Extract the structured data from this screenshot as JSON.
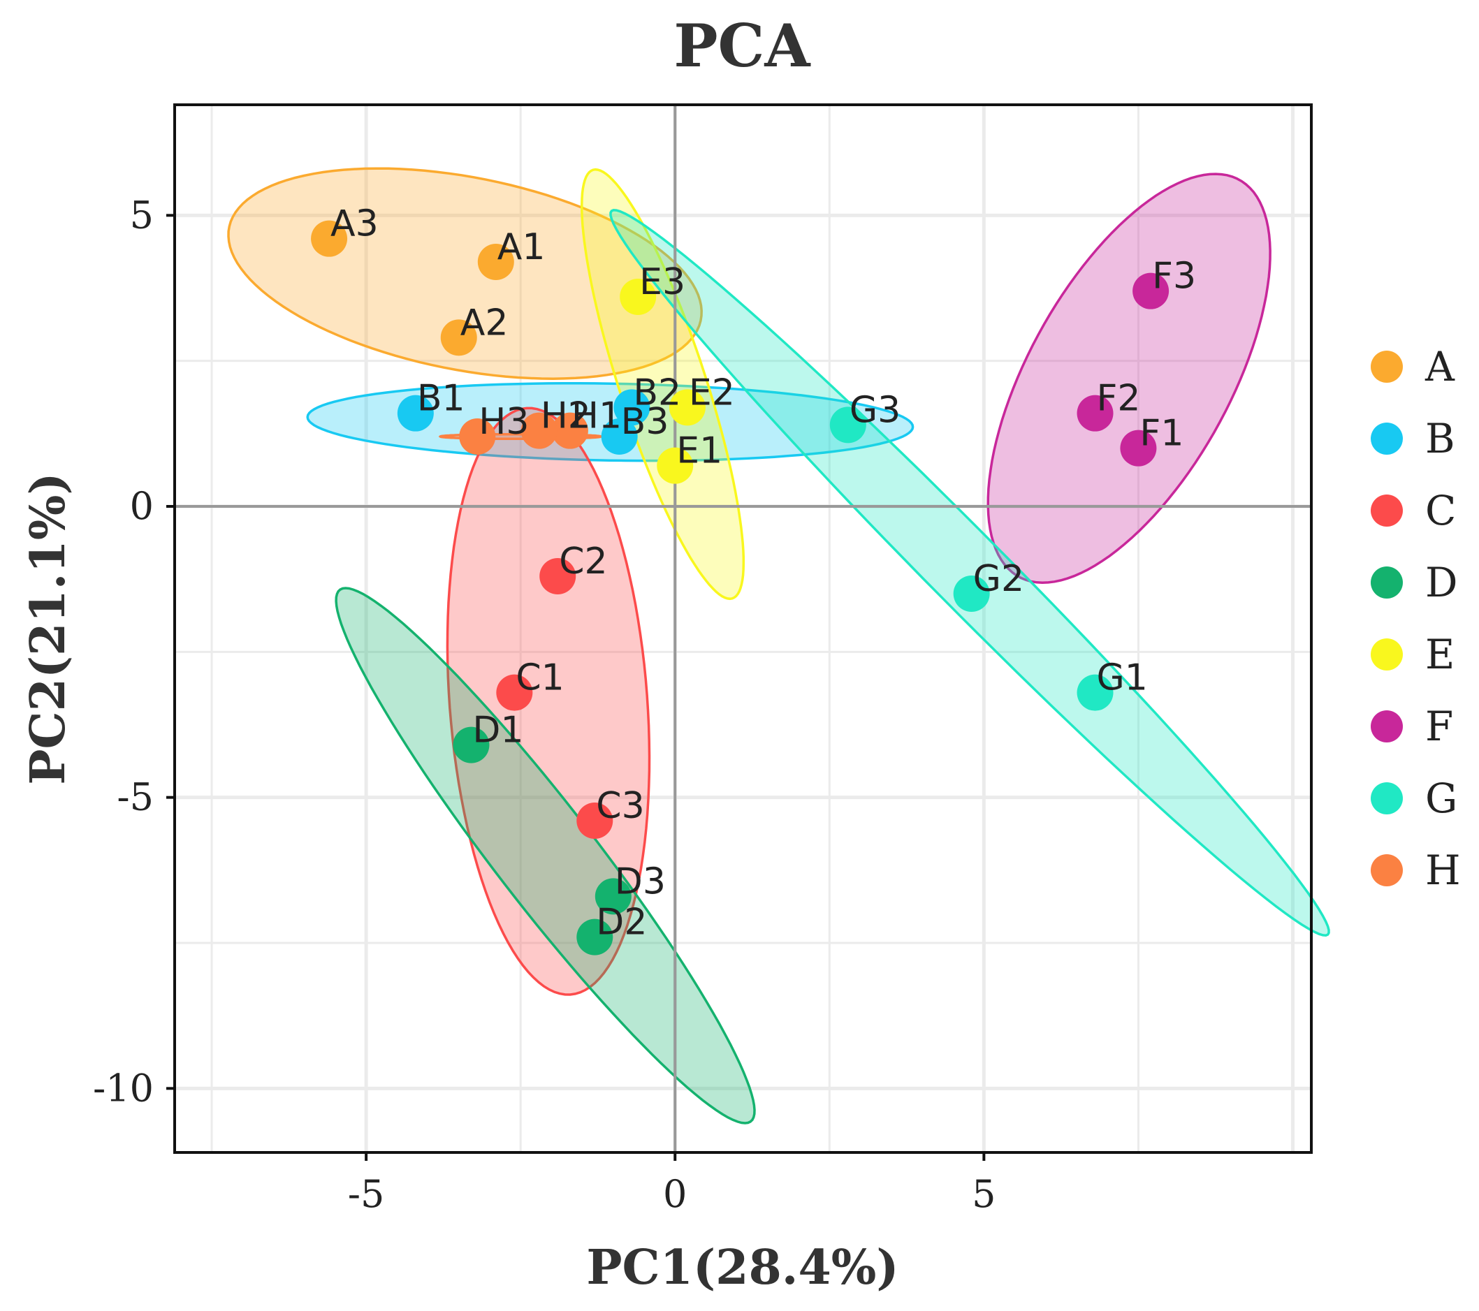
{
  "chart_data": {
    "type": "scatter",
    "title": "PCA",
    "xlabel": "PC1(28.4%)",
    "ylabel": "PC2(21.1%)",
    "xlim": [
      -8.1,
      10.3
    ],
    "ylim": [
      -11.1,
      6.9
    ],
    "xticks": [
      -5,
      0,
      5
    ],
    "yticks": [
      5,
      0,
      -5,
      -10
    ],
    "xtick_labels": [
      "-5",
      "0",
      "5"
    ],
    "ytick_labels": [
      "5",
      "0",
      "-5",
      "-10"
    ],
    "grid": true,
    "legend_position": "right",
    "groups": [
      {
        "name": "A",
        "color": "#FBAA2F",
        "points": [
          {
            "label": "A1",
            "x": -2.9,
            "y": 4.2
          },
          {
            "label": "A2",
            "x": -3.5,
            "y": 2.9
          },
          {
            "label": "A3",
            "x": -5.6,
            "y": 4.6
          }
        ],
        "ellipse": {
          "cx": -3.4,
          "cy": 4.0,
          "rx": 3.9,
          "ry": 1.65,
          "angle": -12
        }
      },
      {
        "name": "B",
        "color": "#18C9F2",
        "points": [
          {
            "label": "B1",
            "x": -4.2,
            "y": 1.6
          },
          {
            "label": "B2",
            "x": -0.7,
            "y": 1.7
          },
          {
            "label": "B3",
            "x": -0.9,
            "y": 1.2
          }
        ],
        "ellipse": {
          "cx": -1.05,
          "cy": 1.45,
          "rx": 4.9,
          "ry": 0.66,
          "angle": -1
        }
      },
      {
        "name": "C",
        "color": "#FC4B4B",
        "points": [
          {
            "label": "C1",
            "x": -2.6,
            "y": -3.2
          },
          {
            "label": "C2",
            "x": -1.9,
            "y": -1.2
          },
          {
            "label": "C3",
            "x": -1.3,
            "y": -5.4
          }
        ],
        "ellipse": {
          "cx": -2.05,
          "cy": -3.35,
          "rx": 1.6,
          "ry": 5.05,
          "angle": 4
        }
      },
      {
        "name": "D",
        "color": "#14B26E",
        "points": [
          {
            "label": "D1",
            "x": -3.3,
            "y": -4.1
          },
          {
            "label": "D2",
            "x": -1.3,
            "y": -7.4
          },
          {
            "label": "D3",
            "x": -1.0,
            "y": -6.7
          }
        ],
        "ellipse": {
          "cx": -2.1,
          "cy": -6.0,
          "rx": 5.65,
          "ry": 0.82,
          "angle": -54
        }
      },
      {
        "name": "E",
        "color": "#F9F71E",
        "points": [
          {
            "label": "E1",
            "x": 0.0,
            "y": 0.7
          },
          {
            "label": "E2",
            "x": 0.2,
            "y": 1.7
          },
          {
            "label": "E3",
            "x": -0.6,
            "y": 3.6
          }
        ],
        "ellipse": {
          "cx": -0.2,
          "cy": 2.1,
          "rx": 3.85,
          "ry": 0.7,
          "angle": -73
        }
      },
      {
        "name": "F",
        "color": "#C8279A",
        "points": [
          {
            "label": "F1",
            "x": 7.5,
            "y": 1.0
          },
          {
            "label": "F2",
            "x": 6.8,
            "y": 1.6
          },
          {
            "label": "F3",
            "x": 7.7,
            "y": 3.7
          }
        ],
        "ellipse": {
          "cx": 7.35,
          "cy": 2.2,
          "rx": 3.85,
          "ry": 1.65,
          "angle": 63
        }
      },
      {
        "name": "G",
        "color": "#20E8C4",
        "points": [
          {
            "label": "G1",
            "x": 6.8,
            "y": -3.2
          },
          {
            "label": "G2",
            "x": 4.8,
            "y": -1.5
          },
          {
            "label": "G3",
            "x": 2.8,
            "y": 1.4
          }
        ],
        "ellipse": {
          "cx": 4.77,
          "cy": -1.14,
          "rx": 8.5,
          "ry": 0.62,
          "angle": -47
        }
      },
      {
        "name": "H",
        "color": "#FB8142",
        "points": [
          {
            "label": "H1",
            "x": -1.7,
            "y": 1.3
          },
          {
            "label": "H2",
            "x": -2.2,
            "y": 1.3
          },
          {
            "label": "H3",
            "x": -3.2,
            "y": 1.2
          }
        ],
        "ellipse": {
          "cx": -2.5,
          "cy": 1.2,
          "rx": 1.3,
          "ry": 0.04,
          "angle": 0
        }
      }
    ],
    "legend_labels": [
      "A",
      "B",
      "C",
      "D",
      "E",
      "F",
      "G",
      "H"
    ]
  }
}
